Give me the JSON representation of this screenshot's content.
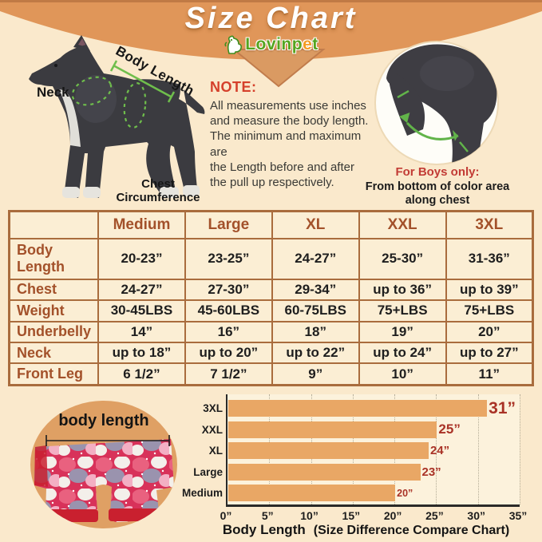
{
  "header": {
    "title": "Size Chart",
    "logo": {
      "prefix": "Lovinp",
      "accent": "e",
      "suffix": "t"
    }
  },
  "dog_diagram": {
    "neck_label": "Neck",
    "body_length_label": "Body Length",
    "chest_label_line1": "Chest",
    "chest_label_line2": "Circumference"
  },
  "note": {
    "heading": "NOTE:",
    "lines": [
      "All measurements use inches",
      "and measure the body length.",
      "The minimum and maximum are",
      "the Length before and after",
      "the pull up respectively."
    ]
  },
  "boys": {
    "heading": "For Boys only:",
    "line1": "From bottom of color area",
    "line2": "along chest"
  },
  "table": {
    "columns": [
      "",
      "Medium",
      "Large",
      "XL",
      "XXL",
      "3XL"
    ],
    "rows": [
      {
        "label": "Body Length",
        "values": [
          "20-23”",
          "23-25”",
          "24-27”",
          "25-30”",
          "31-36”"
        ]
      },
      {
        "label": "Chest",
        "values": [
          "24-27”",
          "27-30”",
          "29-34”",
          "up to 36”",
          "up to 39”"
        ]
      },
      {
        "label": "Weight",
        "values": [
          "30-45LBS",
          "45-60LBS",
          "60-75LBS",
          "75+LBS",
          "75+LBS"
        ]
      },
      {
        "label": "Underbelly",
        "values": [
          "14”",
          "16”",
          "18”",
          "19”",
          "20”"
        ]
      },
      {
        "label": "Neck",
        "values": [
          "up to 18”",
          "up to 20”",
          "up to 22”",
          "up to 24”",
          "up to 27”"
        ]
      },
      {
        "label": "Front Leg",
        "values": [
          "6 1/2”",
          "7 1/2”",
          "9”",
          "10”",
          "11”"
        ]
      }
    ]
  },
  "pajama": {
    "label": "body length"
  },
  "chart_data": {
    "type": "bar",
    "orientation": "horizontal",
    "categories": [
      "3XL",
      "XXL",
      "XL",
      "Large",
      "Medium"
    ],
    "values": [
      31,
      25,
      24,
      23,
      20
    ],
    "value_labels": [
      "31”",
      "25”",
      "24”",
      "23”",
      "20”"
    ],
    "x_tick_values": [
      0,
      5,
      10,
      15,
      20,
      25,
      30,
      35
    ],
    "x_ticks": [
      "0”",
      "5”",
      "10”",
      "15”",
      "20”",
      "25”",
      "30”",
      "35”"
    ],
    "xlim": [
      0,
      35
    ],
    "grid": true,
    "legend": false,
    "xlabel_main": "Body Length",
    "xlabel_note": "(Size Difference Compare Chart)",
    "bar_color": "#E9A765",
    "value_label_color": "#A93226"
  },
  "colors": {
    "background": "#FAE9CC",
    "banner_orange": "#E09659",
    "table_border": "#A96C3D",
    "table_label_text": "#A3512A",
    "note_red": "#D5402B",
    "annotation_green": "#6FBE4C",
    "pajama_circle": "#DFA064"
  }
}
